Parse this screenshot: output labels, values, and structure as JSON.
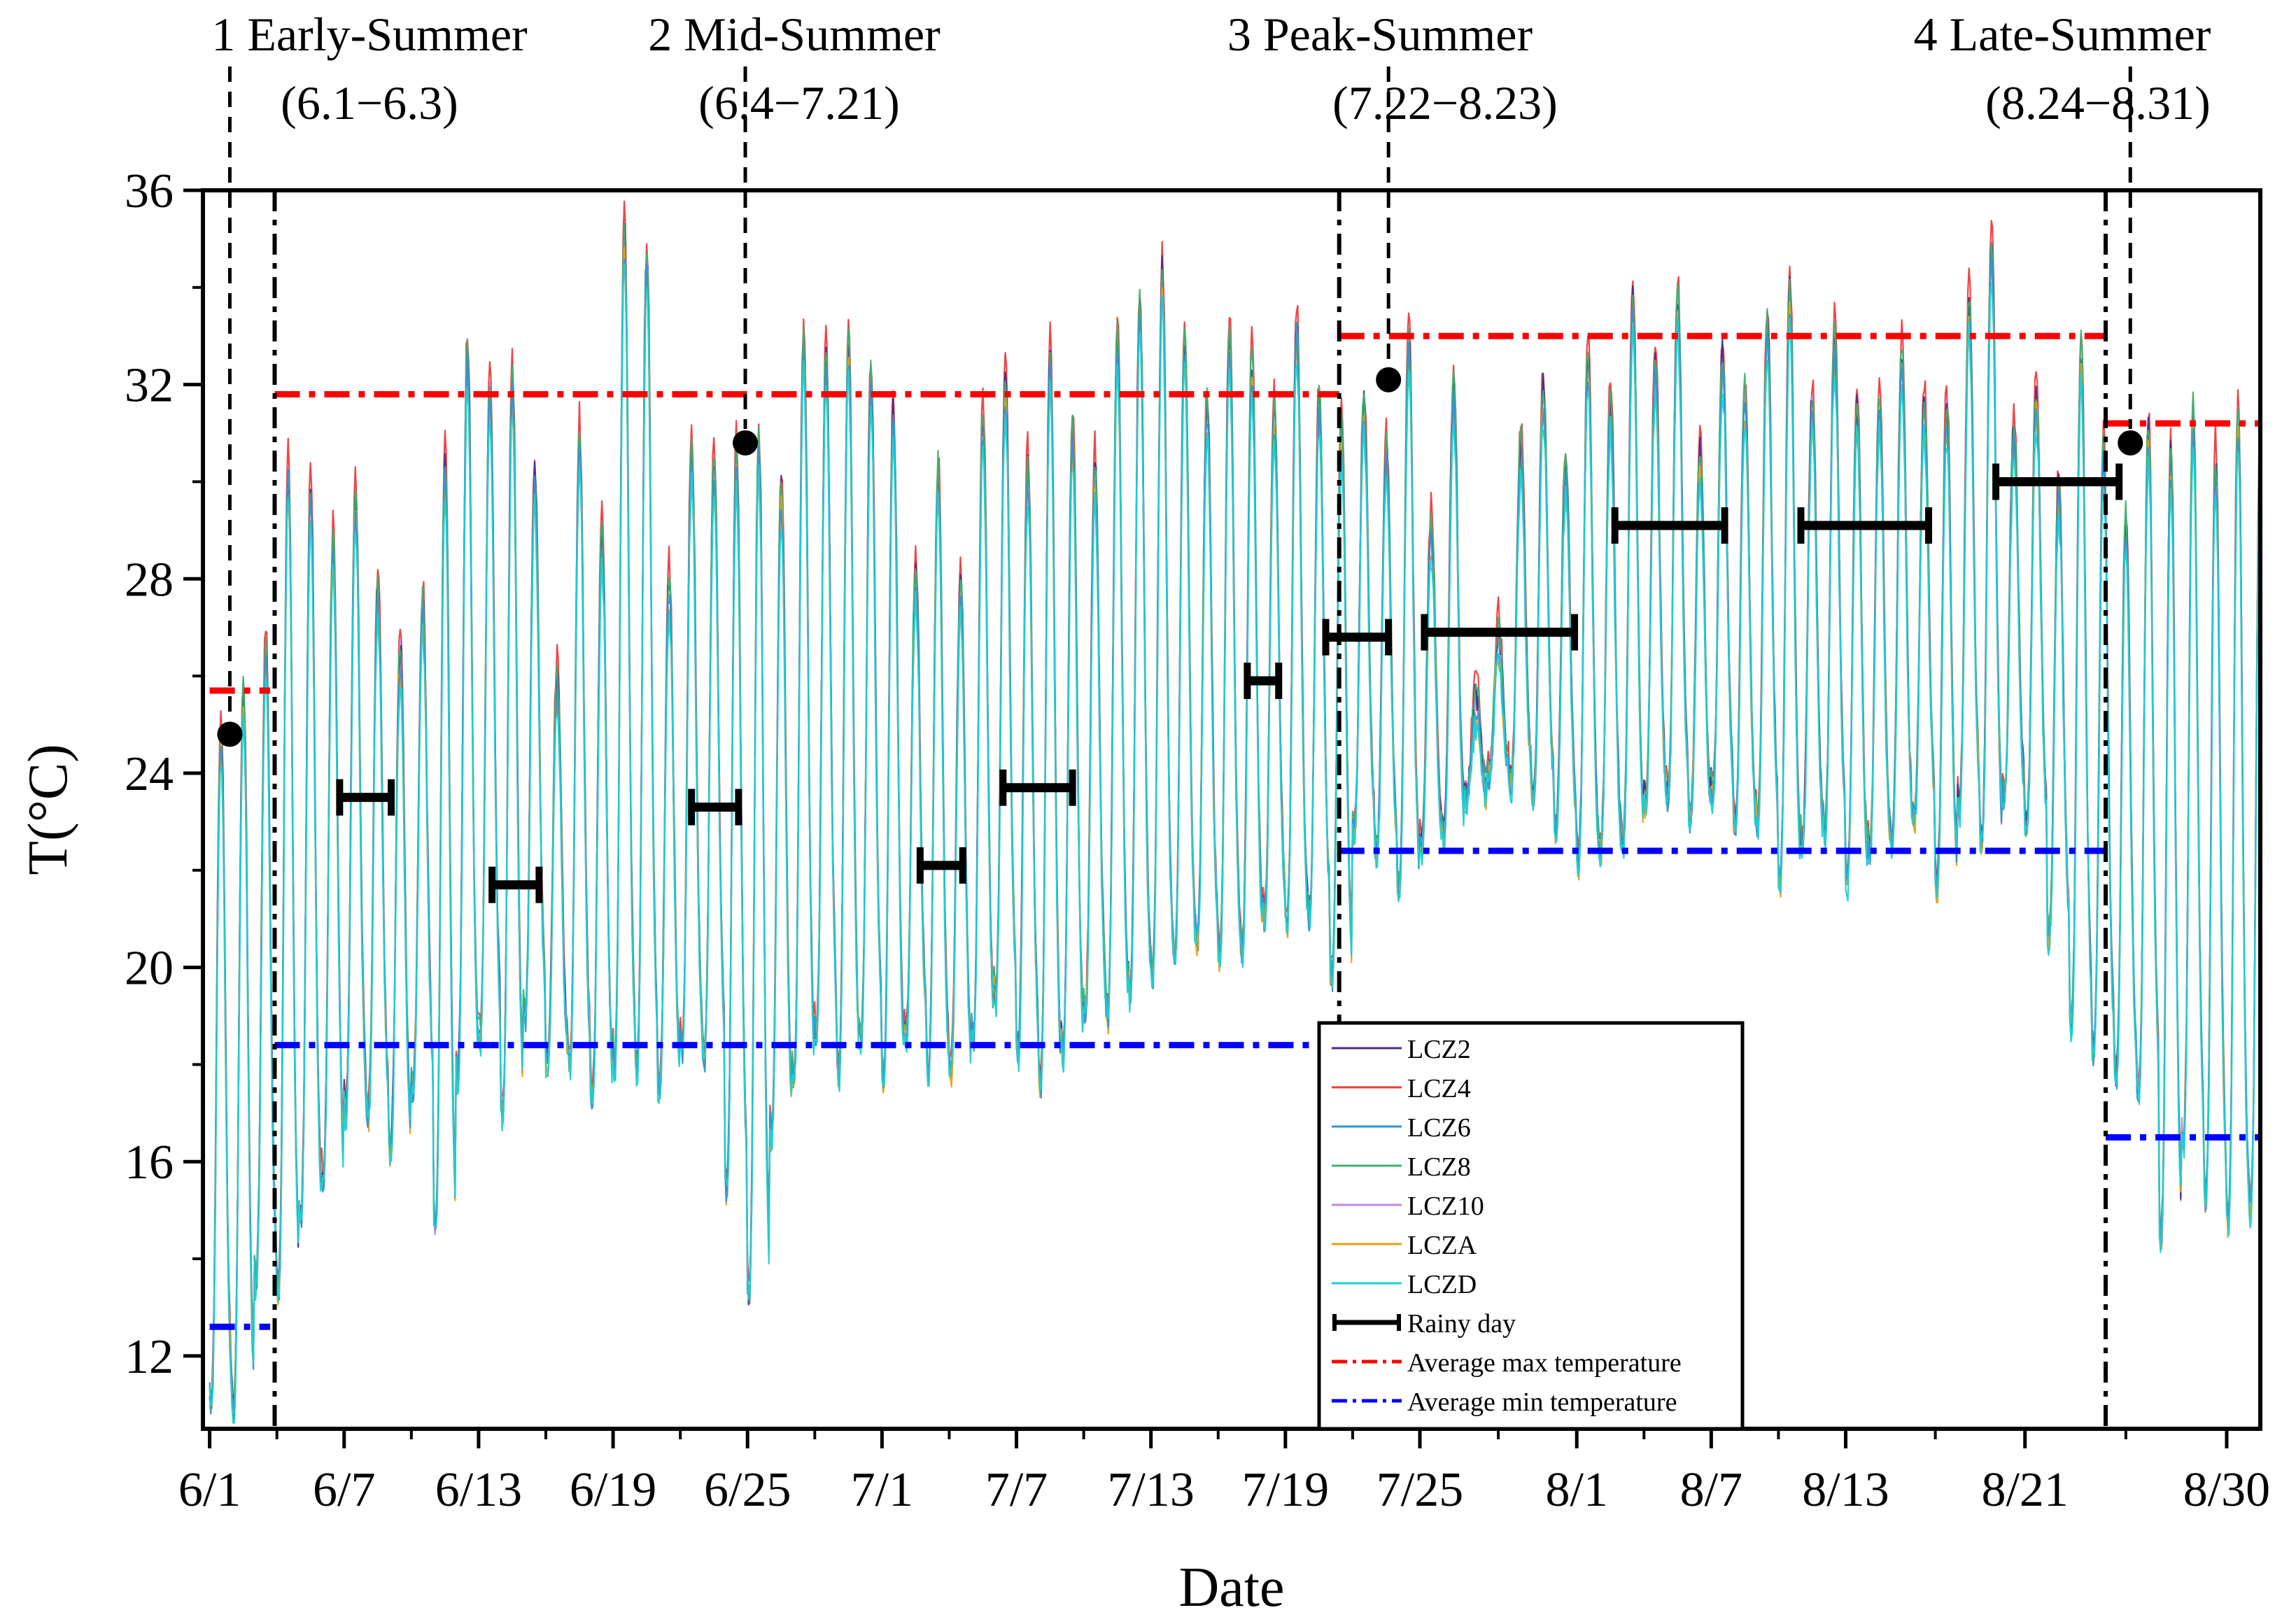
{
  "chart_data": {
    "type": "line",
    "title": "",
    "xlabel": "Date",
    "ylabel": "T(°C)",
    "ylim": [
      10.5,
      36
    ],
    "yticks": [
      12,
      16,
      20,
      24,
      28,
      32,
      36
    ],
    "xlim_day": [
      -0.3,
      91.5
    ],
    "xticks": [
      {
        "label": "6/1",
        "day": 0
      },
      {
        "label": "6/7",
        "day": 6
      },
      {
        "label": "6/13",
        "day": 12
      },
      {
        "label": "6/19",
        "day": 18
      },
      {
        "label": "6/25",
        "day": 24
      },
      {
        "label": "7/1",
        "day": 30
      },
      {
        "label": "7/7",
        "day": 36
      },
      {
        "label": "7/13",
        "day": 42
      },
      {
        "label": "7/19",
        "day": 48
      },
      {
        "label": "7/25",
        "day": 54
      },
      {
        "label": "8/1",
        "day": 61
      },
      {
        "label": "8/7",
        "day": 67
      },
      {
        "label": "8/13",
        "day": 73
      },
      {
        "label": "8/21",
        "day": 81
      },
      {
        "label": "8/30",
        "day": 90
      }
    ],
    "periods": [
      {
        "name": "1 Early-Summer",
        "range": "(6.1−6.3)",
        "label_day": 0.9,
        "marker_day": 0.9,
        "marker_t": 24.8,
        "boundary_day": null
      },
      {
        "name": "2 Mid-Summer",
        "range": "(6.4−7.21)",
        "label_day": 23.9,
        "marker_day": 23.9,
        "marker_t": 30.8,
        "boundary_day": 2.9
      },
      {
        "name": "3 Peak-Summer",
        "range": "(7.22−8.23)",
        "label_day": 52.6,
        "marker_day": 52.6,
        "marker_t": 32.1,
        "boundary_day": 50.4
      },
      {
        "name": "4 Late-Summer",
        "range": "(8.24−8.31)",
        "label_day": 85.7,
        "marker_day": 85.7,
        "marker_t": 30.8,
        "boundary_day": 84.6
      }
    ],
    "avg_max": [
      {
        "start": 0,
        "end": 2.7,
        "value": 25.7
      },
      {
        "start": 2.9,
        "end": 50.4,
        "value": 31.8
      },
      {
        "start": 50.4,
        "end": 84.6,
        "value": 33.0
      },
      {
        "start": 84.6,
        "end": 91.5,
        "value": 31.2
      }
    ],
    "avg_min": [
      {
        "start": 0,
        "end": 2.7,
        "value": 12.6
      },
      {
        "start": 2.9,
        "end": 50.4,
        "value": 18.4
      },
      {
        "start": 50.4,
        "end": 84.6,
        "value": 22.4
      },
      {
        "start": 84.6,
        "end": 91.5,
        "value": 16.5
      }
    ],
    "rainy_days": [
      {
        "start": 5.8,
        "end": 8.1,
        "value": 23.5
      },
      {
        "start": 12.6,
        "end": 14.7,
        "value": 21.7
      },
      {
        "start": 21.5,
        "end": 23.6,
        "value": 23.3
      },
      {
        "start": 31.7,
        "end": 33.6,
        "value": 22.1
      },
      {
        "start": 35.4,
        "end": 38.5,
        "value": 23.7
      },
      {
        "start": 46.3,
        "end": 47.7,
        "value": 25.9
      },
      {
        "start": 49.8,
        "end": 52.6,
        "value": 26.8
      },
      {
        "start": 54.2,
        "end": 60.9,
        "value": 26.9
      },
      {
        "start": 62.7,
        "end": 67.6,
        "value": 29.1
      },
      {
        "start": 71.0,
        "end": 76.7,
        "value": 29.1
      },
      {
        "start": 79.7,
        "end": 85.2,
        "value": 30.0
      }
    ],
    "daily_max": [
      24.8,
      25.5,
      26.5,
      30.2,
      29.8,
      28.6,
      29.6,
      27.8,
      26.5,
      27.4,
      30.3,
      32.6,
      31.8,
      32.0,
      30.0,
      25.9,
      30.8,
      28.8,
      35.0,
      34.6,
      27.9,
      30.6,
      30.3,
      30.5,
      30.8,
      29.8,
      32.8,
      32.5,
      32.8,
      32.0,
      31.3,
      28.1,
      30.1,
      27.8,
      31.2,
      32.0,
      30.3,
      32.5,
      31.0,
      30.2,
      32.8,
      33.5,
      34.2,
      32.8,
      31.5,
      32.9,
      32.4,
      31.3,
      33.2,
      31.6,
      31.1,
      31.5,
      30.5,
      32.8,
      29.0,
      31.8,
      25.5,
      26.8,
      30.6,
      31.8,
      30.2,
      32.5,
      31.6,
      33.6,
      32.3,
      33.7,
      30.5,
      32.5,
      31.7,
      33.1,
      33.8,
      31.6,
      32.9,
      31.5,
      31.6,
      32.5,
      31.5,
      31.5,
      33.6,
      34.8,
      31.0,
      31.7,
      29.8,
      32.6,
      30.6,
      29.1,
      31.0,
      30.5,
      31.3,
      30.4,
      31.3,
      30.8
    ],
    "daily_min": [
      11.0,
      10.9,
      13.6,
      13.4,
      14.8,
      15.6,
      17.1,
      17.0,
      16.2,
      17.5,
      14.6,
      17.8,
      18.6,
      17.1,
      19.0,
      18.0,
      18.0,
      17.4,
      18.0,
      18.0,
      17.5,
      18.3,
      18.2,
      15.5,
      13.3,
      16.6,
      17.7,
      18.6,
      17.8,
      18.6,
      17.8,
      18.6,
      17.8,
      17.9,
      18.6,
      19.4,
      18.3,
      17.6,
      18.3,
      19.1,
      19.0,
      19.5,
      19.9,
      20.2,
      20.6,
      20.3,
      20.4,
      21.1,
      20.9,
      21.1,
      19.8,
      22.8,
      22.4,
      21.6,
      22.5,
      22.8,
      23.5,
      24.0,
      23.8,
      23.5,
      22.9,
      22.2,
      22.4,
      22.6,
      23.4,
      23.5,
      23.1,
      23.6,
      22.9,
      23.0,
      21.8,
      22.6,
      22.9,
      21.8,
      22.4,
      22.7,
      23.1,
      21.7,
      23.3,
      22.6,
      23.5,
      22.9,
      20.7,
      18.9,
      18.3,
      17.8,
      17.4,
      14.5,
      16.4,
      15.3,
      14.8,
      15.1
    ],
    "legend": {
      "position": "lower-middle",
      "series": [
        "LCZ2",
        "LCZ4",
        "LCZ6",
        "LCZ8",
        "LCZ10",
        "LCZA",
        "LCZD"
      ],
      "series_colors": [
        "#4b2c8a",
        "#ee3b3b",
        "#2f95d7",
        "#3cb371",
        "#b48aee",
        "#e3a21a",
        "#1ed0d4"
      ],
      "rainy_label": "Rainy day",
      "avg_max_label": "Average max temperature",
      "avg_min_label": "Average min  temperature"
    },
    "colors": {
      "avg_max": "#ff0000",
      "avg_min": "#0000ff",
      "rainy": "#000000",
      "frame": "#000000"
    }
  }
}
